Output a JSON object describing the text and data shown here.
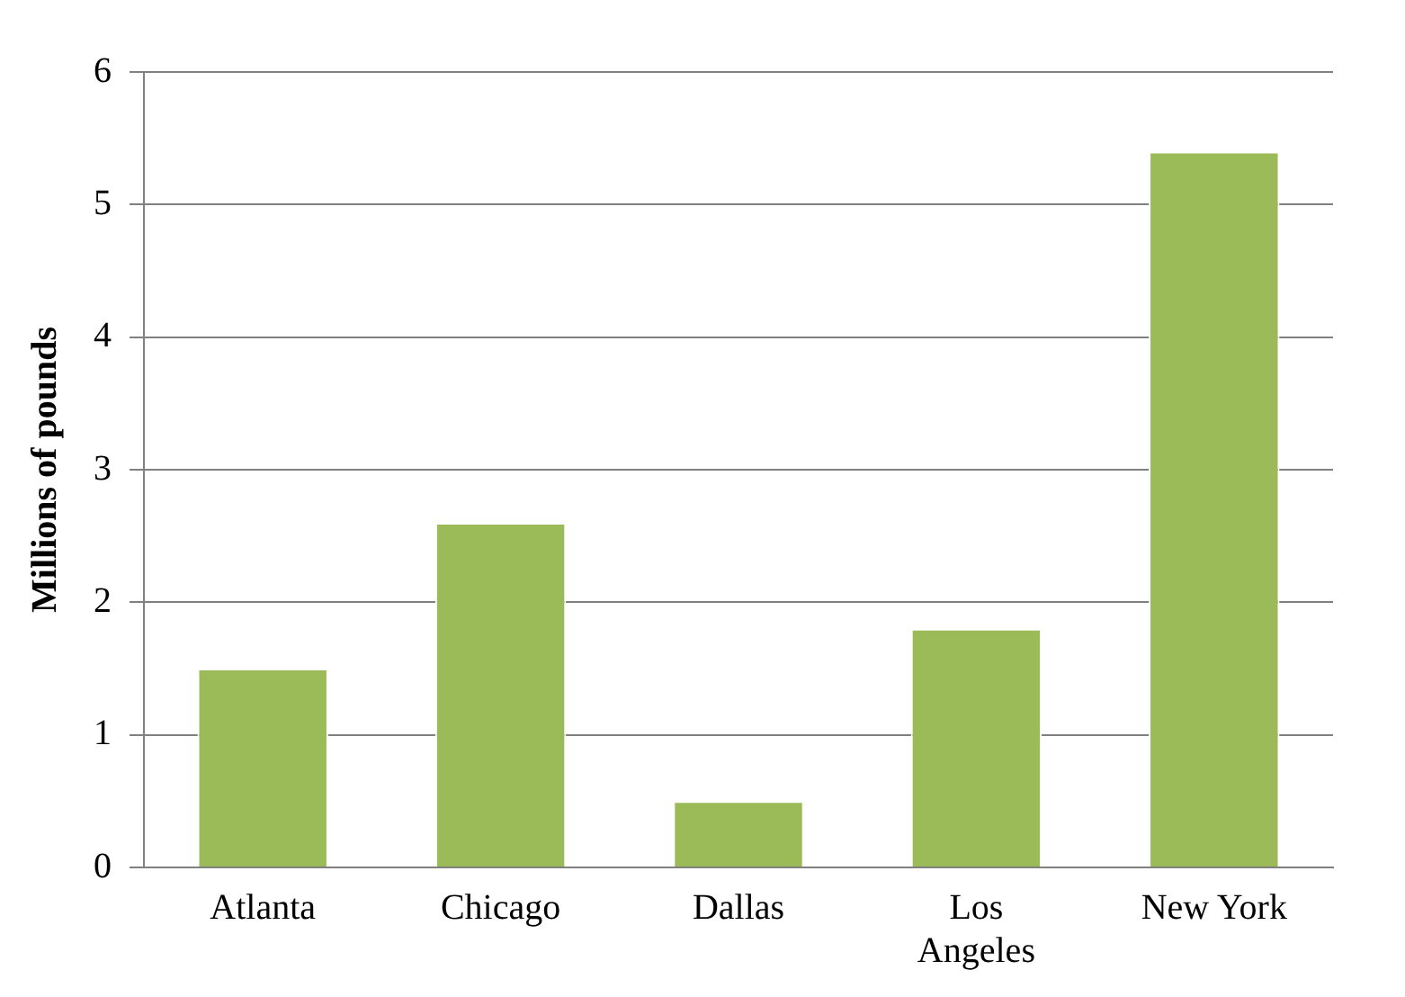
{
  "chart_data": {
    "type": "bar",
    "ylabel": "Millions of pounds",
    "categories": [
      "Atlanta",
      "Chicago",
      "Dallas",
      "Los Angeles",
      "New York"
    ],
    "values": [
      1.5,
      2.6,
      0.5,
      1.8,
      5.4
    ],
    "color": "#9bbb59",
    "ylim": [
      0,
      6
    ],
    "yticks": [
      0,
      1,
      2,
      3,
      4,
      5,
      6
    ],
    "grid": "y"
  }
}
